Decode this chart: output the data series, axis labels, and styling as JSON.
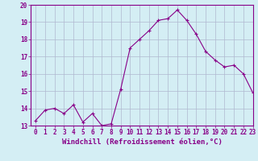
{
  "x": [
    0,
    1,
    2,
    3,
    4,
    5,
    6,
    7,
    8,
    9,
    10,
    11,
    12,
    13,
    14,
    15,
    16,
    17,
    18,
    19,
    20,
    21,
    22,
    23
  ],
  "y": [
    13.3,
    13.9,
    14.0,
    13.7,
    14.2,
    13.2,
    13.7,
    13.0,
    13.1,
    15.1,
    17.5,
    18.0,
    18.5,
    19.1,
    19.2,
    19.7,
    19.1,
    18.3,
    17.3,
    16.8,
    16.4,
    16.5,
    16.0,
    14.9
  ],
  "line_color": "#880088",
  "marker": "+",
  "marker_size": 3,
  "linewidth": 0.8,
  "xlabel": "Windchill (Refroidissement éolien,°C)",
  "xlabel_fontsize": 6.5,
  "bg_color": "#d4eef4",
  "grid_color": "#b0b8d0",
  "ylim": [
    13,
    20
  ],
  "xlim": [
    -0.5,
    23
  ],
  "yticks": [
    13,
    14,
    15,
    16,
    17,
    18,
    19,
    20
  ],
  "xticks": [
    0,
    1,
    2,
    3,
    4,
    5,
    6,
    7,
    8,
    9,
    10,
    11,
    12,
    13,
    14,
    15,
    16,
    17,
    18,
    19,
    20,
    21,
    22,
    23
  ],
  "tick_fontsize": 5.5,
  "tick_color": "#880088",
  "label_color": "#880088",
  "spine_color": "#880088"
}
